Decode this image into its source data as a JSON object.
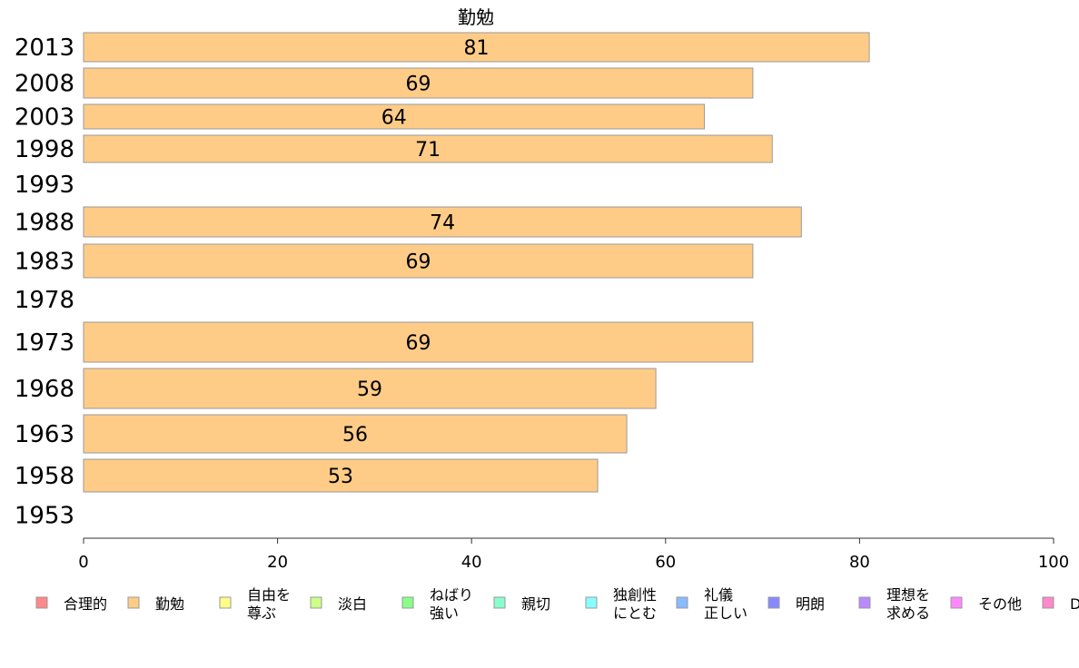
{
  "chart_data": {
    "type": "bar",
    "orientation": "horizontal",
    "title": "勤勉",
    "xlim": [
      0,
      100
    ],
    "xticks": [
      "0",
      "20",
      "40",
      "60",
      "80",
      "100"
    ],
    "grid": false,
    "legend_placement": "bottom",
    "bar_color": "#ffcc88",
    "categories": [
      "2013",
      "2008",
      "2003",
      "1998",
      "1993",
      "1988",
      "1983",
      "1978",
      "1973",
      "1968",
      "1963",
      "1958",
      "1953"
    ],
    "values": [
      81,
      69,
      64,
      71,
      null,
      74,
      69,
      null,
      69,
      59,
      56,
      53,
      null
    ],
    "value_labels": [
      "81",
      "69",
      "64",
      "71",
      "",
      "74",
      "69",
      "",
      "69",
      "59",
      "56",
      "53",
      ""
    ],
    "legend": [
      {
        "label": "合理的",
        "color": "#ff8888"
      },
      {
        "label": "勤勉",
        "color": "#ffcc88"
      },
      {
        "label": "自由を\n尊ぶ",
        "color": "#ffff88"
      },
      {
        "label": "淡白",
        "color": "#ccff88"
      },
      {
        "label": "ねばり\n強い",
        "color": "#88ff88"
      },
      {
        "label": "親切",
        "color": "#88ffcc"
      },
      {
        "label": "独創性\nにとむ",
        "color": "#88ffff"
      },
      {
        "label": "礼儀\n正しい",
        "color": "#88bbff"
      },
      {
        "label": "明朗",
        "color": "#8888ff"
      },
      {
        "label": "理想を\n求める",
        "color": "#bb88ff"
      },
      {
        "label": "その他",
        "color": "#ff88ff"
      },
      {
        "label": "D",
        "color": "#ff88cc"
      }
    ]
  }
}
